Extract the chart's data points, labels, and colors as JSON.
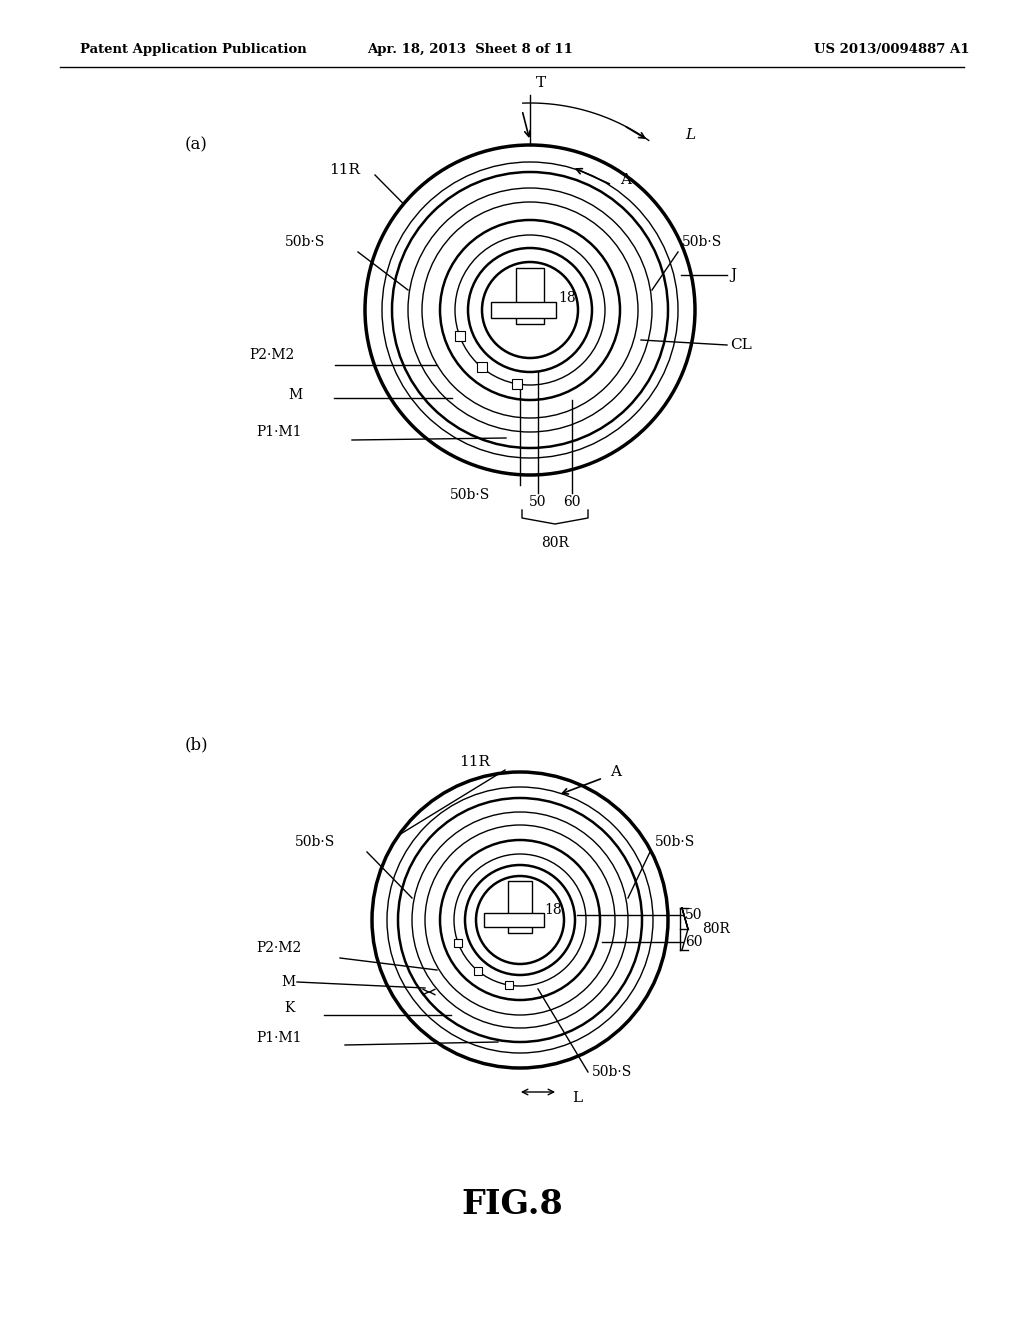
{
  "bg_color": "#ffffff",
  "line_color": "#000000",
  "header_left": "Patent Application Publication",
  "header_center": "Apr. 18, 2013  Sheet 8 of 11",
  "header_right": "US 2013/0094887 A1",
  "fig_label": "FIG.8",
  "label_a": "(a)",
  "label_b": "(b)",
  "page_width": 10.24,
  "page_height": 13.2
}
